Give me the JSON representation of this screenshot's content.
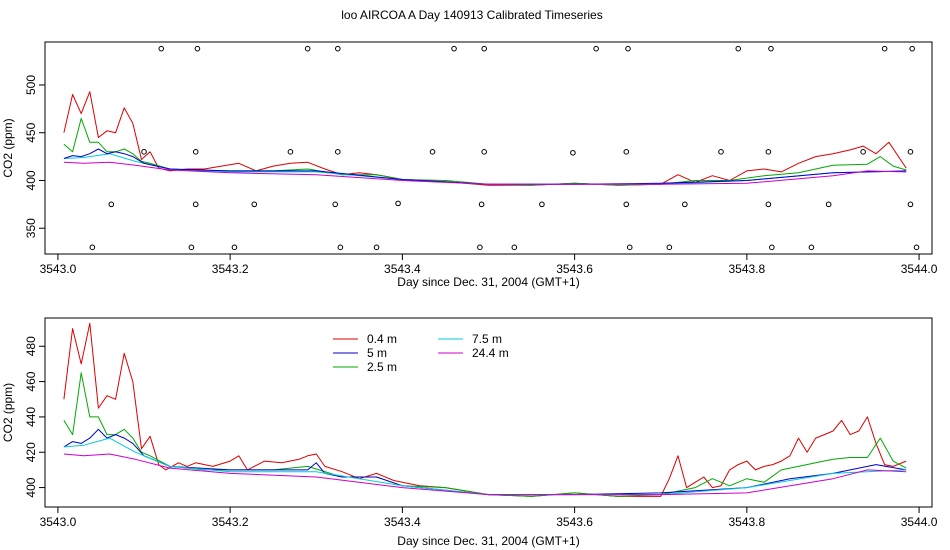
{
  "title": "loo AIRCOA A  Day 140913  Calibrated Timeseries",
  "chart_data": [
    {
      "type": "scatter",
      "title": "",
      "xlabel": "Day since Dec. 31, 2004 (GMT+1)",
      "ylabel": "CO2 (ppm)",
      "xlim": [
        3542.985,
        3544.015
      ],
      "ylim": [
        323,
        545
      ],
      "x_ticks": [
        3543.0,
        3543.2,
        3543.4,
        3543.6,
        3543.8,
        3544.0
      ],
      "x_tick_labels": [
        "3543.0",
        "3543.2",
        "3543.4",
        "3543.6",
        "3543.8",
        "3544.0"
      ],
      "y_ticks": [
        350,
        400,
        450,
        500
      ],
      "y_tick_labels": [
        "350",
        "400",
        "450",
        "500"
      ],
      "grid": false,
      "legend": "none",
      "series": [
        {
          "color": "#dd0000",
          "x": [
            3543.007,
            3543.017,
            3543.027,
            3543.037,
            3543.047,
            3543.057,
            3543.067,
            3543.077,
            3543.087,
            3543.097,
            3543.107,
            3543.117,
            3543.13,
            3543.15,
            3543.17,
            3543.19,
            3543.21,
            3543.23,
            3543.25,
            3543.27,
            3543.29,
            3543.31,
            3543.33,
            3543.35,
            3543.37,
            3543.4,
            3543.43,
            3543.46,
            3543.5,
            3543.55,
            3543.6,
            3543.65,
            3543.7,
            3543.72,
            3543.74,
            3543.76,
            3543.78,
            3543.8,
            3543.82,
            3543.84,
            3543.86,
            3543.88,
            3543.9,
            3543.92,
            3543.935,
            3543.95,
            3543.965,
            3543.985
          ],
          "y": [
            450,
            490,
            470,
            493,
            445,
            452,
            450,
            476,
            460,
            422,
            430,
            413,
            410,
            412,
            412,
            415,
            418,
            410,
            415,
            418,
            419,
            412,
            406,
            408,
            406,
            401,
            400,
            398,
            395,
            395,
            397,
            395,
            396,
            406,
            398,
            405,
            400,
            410,
            412,
            409,
            418,
            425,
            428,
            432,
            436,
            428,
            440,
            413
          ]
        },
        {
          "color": "#00aa00",
          "x": [
            3543.007,
            3543.017,
            3543.027,
            3543.037,
            3543.047,
            3543.057,
            3543.067,
            3543.077,
            3543.087,
            3543.097,
            3543.107,
            3543.13,
            3543.17,
            3543.21,
            3543.25,
            3543.29,
            3543.33,
            3543.37,
            3543.4,
            3543.45,
            3543.5,
            3543.55,
            3543.6,
            3543.65,
            3543.7,
            3543.74,
            3543.78,
            3543.82,
            3543.86,
            3543.9,
            3543.94,
            3543.955,
            3543.97,
            3543.985
          ],
          "y": [
            438,
            430,
            465,
            440,
            440,
            430,
            430,
            433,
            428,
            420,
            418,
            412,
            410,
            410,
            410,
            412,
            406,
            406,
            401,
            400,
            396,
            395,
            397,
            395,
            396,
            400,
            400,
            405,
            408,
            416,
            417,
            425,
            415,
            411
          ]
        },
        {
          "color": "#00ccdd",
          "x": [
            3543.007,
            3543.03,
            3543.06,
            3543.09,
            3543.13,
            3543.2,
            3543.3,
            3543.4,
            3543.5,
            3543.6,
            3543.7,
            3543.8,
            3543.9,
            3543.985
          ],
          "y": [
            423,
            424,
            428,
            420,
            412,
            409,
            409,
            401,
            396,
            396,
            396,
            400,
            408,
            410
          ]
        },
        {
          "color": "#0000cc",
          "x": [
            3543.007,
            3543.017,
            3543.027,
            3543.037,
            3543.047,
            3543.057,
            3543.067,
            3543.077,
            3543.087,
            3543.1,
            3543.13,
            3543.2,
            3543.3,
            3543.4,
            3543.5,
            3543.6,
            3543.7,
            3543.8,
            3543.9,
            3543.985
          ],
          "y": [
            423,
            426,
            425,
            428,
            433,
            428,
            430,
            428,
            425,
            418,
            412,
            410,
            410,
            401,
            396,
            396,
            397,
            400,
            408,
            410
          ]
        },
        {
          "color": "#cc00cc",
          "x": [
            3543.007,
            3543.03,
            3543.06,
            3543.09,
            3543.13,
            3543.2,
            3543.3,
            3543.4,
            3543.5,
            3543.6,
            3543.7,
            3543.8,
            3543.9,
            3543.94,
            3543.985
          ],
          "y": [
            419,
            418,
            419,
            416,
            411,
            408,
            406,
            400,
            396,
            396,
            396,
            397,
            405,
            410,
            409
          ]
        }
      ],
      "points": {
        "x": [
          3543.04,
          3543.062,
          3543.1,
          3543.12,
          3543.155,
          3543.16,
          3543.16,
          3543.162,
          3543.205,
          3543.228,
          3543.27,
          3543.29,
          3543.322,
          3543.325,
          3543.325,
          3543.328,
          3543.37,
          3543.395,
          3543.435,
          3543.46,
          3543.49,
          3543.492,
          3543.495,
          3543.495,
          3543.53,
          3543.562,
          3543.598,
          3543.625,
          3543.66,
          3543.66,
          3543.662,
          3543.664,
          3543.71,
          3543.728,
          3543.77,
          3543.79,
          3543.825,
          3543.825,
          3543.828,
          3543.829,
          3543.875,
          3543.895,
          3543.935,
          3543.96,
          3543.99,
          3543.99,
          3543.992,
          3543.997
        ],
        "y": [
          330,
          375,
          430,
          538,
          330,
          375,
          430,
          538,
          330,
          375,
          430,
          538,
          375,
          430,
          538,
          330,
          330,
          376,
          430,
          538,
          330,
          375,
          430,
          538,
          330,
          375,
          429,
          538,
          375,
          430,
          538,
          330,
          330,
          375,
          430,
          538,
          375,
          430,
          538,
          330,
          330,
          375,
          430,
          538,
          375,
          430,
          538,
          330
        ]
      }
    },
    {
      "type": "line",
      "title": "",
      "xlabel": "Day since Dec. 31, 2004 (GMT+1)",
      "ylabel": "CO2 (ppm)",
      "xlim": [
        3542.985,
        3544.015
      ],
      "ylim": [
        389,
        496
      ],
      "x_ticks": [
        3543.0,
        3543.2,
        3543.4,
        3543.6,
        3543.8,
        3544.0
      ],
      "x_tick_labels": [
        "3543.0",
        "3543.2",
        "3543.4",
        "3543.6",
        "3543.8",
        "3544.0"
      ],
      "y_ticks": [
        400,
        420,
        440,
        460,
        480
      ],
      "y_tick_labels": [
        "400",
        "420",
        "440",
        "460",
        "480"
      ],
      "grid": false,
      "legend": "top-left",
      "series": [
        {
          "name": "0.4 m",
          "color": "#dd0000",
          "x": [
            3543.007,
            3543.017,
            3543.027,
            3543.037,
            3543.047,
            3543.057,
            3543.067,
            3543.077,
            3543.087,
            3543.097,
            3543.107,
            3543.117,
            3543.125,
            3543.14,
            3543.15,
            3543.16,
            3543.18,
            3543.2,
            3543.21,
            3543.22,
            3543.24,
            3543.26,
            3543.28,
            3543.29,
            3543.3,
            3543.31,
            3543.33,
            3543.35,
            3543.37,
            3543.39,
            3543.42,
            3543.45,
            3543.5,
            3543.55,
            3543.6,
            3543.65,
            3543.7,
            3543.71,
            3543.72,
            3543.73,
            3543.74,
            3543.75,
            3543.76,
            3543.77,
            3543.78,
            3543.79,
            3543.8,
            3543.81,
            3543.82,
            3543.83,
            3543.84,
            3543.85,
            3543.86,
            3543.87,
            3543.88,
            3543.89,
            3543.9,
            3543.91,
            3543.92,
            3543.93,
            3543.94,
            3543.95,
            3543.96,
            3543.97,
            3543.985
          ],
          "y": [
            450,
            490,
            470,
            493,
            445,
            452,
            450,
            476,
            460,
            422,
            429,
            413,
            410,
            414,
            412,
            414,
            412,
            415,
            418,
            410,
            415,
            414,
            416,
            418,
            419,
            412,
            409,
            405,
            408,
            404,
            401,
            400,
            396,
            395,
            397,
            395,
            395,
            405,
            418,
            400,
            403,
            406,
            400,
            401,
            410,
            413,
            415,
            410,
            412,
            413,
            415,
            418,
            428,
            420,
            428,
            430,
            432,
            438,
            430,
            432,
            440,
            425,
            413,
            412,
            415
          ]
        },
        {
          "name": "2.5 m",
          "color": "#00aa00",
          "x": [
            3543.007,
            3543.017,
            3543.027,
            3543.037,
            3543.047,
            3543.057,
            3543.067,
            3543.077,
            3543.087,
            3543.097,
            3543.107,
            3543.13,
            3543.17,
            3543.21,
            3543.25,
            3543.29,
            3543.33,
            3543.37,
            3543.4,
            3543.45,
            3543.5,
            3543.55,
            3543.6,
            3543.65,
            3543.7,
            3543.74,
            3543.76,
            3543.78,
            3543.8,
            3543.82,
            3543.84,
            3543.86,
            3543.88,
            3543.9,
            3543.92,
            3543.94,
            3543.955,
            3543.97,
            3543.985
          ],
          "y": [
            438,
            430,
            465,
            440,
            440,
            430,
            430,
            433,
            428,
            420,
            418,
            412,
            410,
            410,
            410,
            412,
            406,
            406,
            401,
            400,
            396,
            395,
            397,
            395,
            396,
            400,
            405,
            401,
            405,
            403,
            410,
            412,
            414,
            416,
            417,
            417,
            428,
            415,
            411
          ]
        },
        {
          "name": "5 m",
          "color": "#0000cc",
          "x": [
            3543.007,
            3543.017,
            3543.027,
            3543.037,
            3543.047,
            3543.057,
            3543.067,
            3543.077,
            3543.087,
            3543.1,
            3543.13,
            3543.2,
            3543.25,
            3543.29,
            3543.3,
            3543.31,
            3543.33,
            3543.37,
            3543.4,
            3543.5,
            3543.6,
            3543.7,
            3543.8,
            3543.85,
            3543.9,
            3543.95,
            3543.985
          ],
          "y": [
            423,
            426,
            425,
            428,
            433,
            428,
            430,
            428,
            425,
            418,
            412,
            410,
            410,
            410,
            414,
            408,
            406,
            406,
            401,
            396,
            396,
            397,
            400,
            405,
            408,
            413,
            410
          ]
        },
        {
          "name": "7.5 m",
          "color": "#00ccdd",
          "x": [
            3543.007,
            3543.03,
            3543.06,
            3543.09,
            3543.13,
            3543.2,
            3543.3,
            3543.4,
            3543.5,
            3543.6,
            3543.7,
            3543.8,
            3543.9,
            3543.985
          ],
          "y": [
            423,
            424,
            428,
            420,
            412,
            409,
            409,
            401,
            396,
            396,
            396,
            400,
            408,
            410
          ]
        },
        {
          "name": "24.4 m",
          "color": "#cc00cc",
          "x": [
            3543.007,
            3543.03,
            3543.06,
            3543.09,
            3543.13,
            3543.2,
            3543.3,
            3543.4,
            3543.5,
            3543.6,
            3543.7,
            3543.8,
            3543.9,
            3543.94,
            3543.985
          ],
          "y": [
            419,
            418,
            419,
            416,
            411,
            408,
            406,
            400,
            396,
            396,
            396,
            397,
            405,
            410,
            409
          ]
        }
      ]
    }
  ]
}
